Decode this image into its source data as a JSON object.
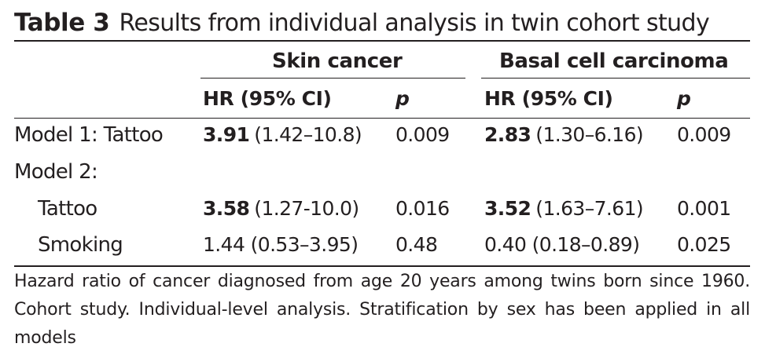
{
  "caption": {
    "label": "Table 3",
    "title": "Results from individual analysis in twin cohort study"
  },
  "groups": {
    "skin": "Skin cancer",
    "bcc": "Basal cell carcinoma"
  },
  "columns": {
    "hr": "HR (95% CI)",
    "p": "p"
  },
  "rows": [
    {
      "label": "Model 1: Tattoo",
      "skin_hr_bold": "3.91",
      "skin_hr_ci": "(1.42–10.8)",
      "skin_p": "0.009",
      "bcc_hr_bold": "2.83",
      "bcc_hr_ci": "(1.30–6.16)",
      "bcc_p": "0.009"
    },
    {
      "label": "Model 2:"
    },
    {
      "label": "Tattoo",
      "skin_hr_bold": "3.58",
      "skin_hr_ci": "(1.27-10.0)",
      "skin_p": "0.016",
      "bcc_hr_bold": "3.52",
      "bcc_hr_ci": "(1.63–7.61)",
      "bcc_p": "0.001"
    },
    {
      "label": "Smoking",
      "skin_hr": "1.44 (0.53–3.95)",
      "skin_p": "0.48",
      "bcc_hr": "0.40 (0.18–0.89)",
      "bcc_p": "0.025"
    }
  ],
  "footnote": "Hazard ratio of cancer diagnosed from age 20 years among twins born since 1960. Cohort study. Individual-level analysis. Stratification by sex has been applied in all models"
}
